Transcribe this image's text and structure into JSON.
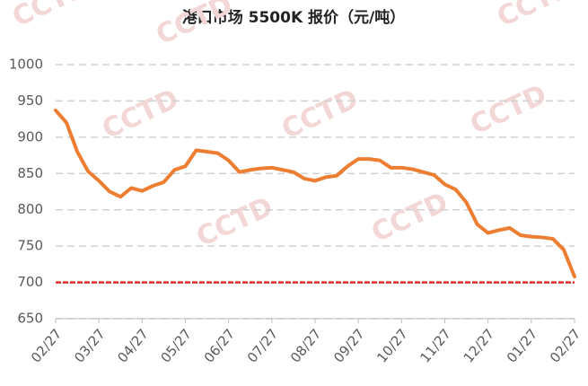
{
  "chart_data": {
    "type": "line",
    "title": "港口市场 5500K 报价（元/吨）",
    "watermark": "CCTD",
    "categories": [
      "02/27",
      null,
      null,
      null,
      "03/27",
      null,
      null,
      null,
      "04/27",
      null,
      null,
      null,
      "05/27",
      null,
      null,
      null,
      "06/27",
      null,
      null,
      null,
      "07/27",
      null,
      null,
      null,
      "08/27",
      null,
      null,
      null,
      "09/27",
      null,
      null,
      null,
      "10/27",
      null,
      null,
      null,
      "11/27",
      null,
      null,
      null,
      "12/27",
      null,
      null,
      null,
      "01/27",
      null,
      null,
      null,
      "02/27"
    ],
    "series": [
      {
        "color": "#ed7d31",
        "values": [
          937,
          920,
          880,
          853,
          840,
          825,
          818,
          830,
          826,
          833,
          838,
          855,
          860,
          882,
          880,
          878,
          868,
          852,
          855,
          857,
          858,
          855,
          852,
          843,
          840,
          845,
          847,
          860,
          870,
          870,
          868,
          858,
          858,
          856,
          852,
          848,
          835,
          828,
          810,
          780,
          768,
          772,
          775,
          765,
          763,
          762,
          760,
          745,
          708
        ]
      }
    ],
    "reference_line": {
      "value": 700,
      "color": "#e0302b"
    },
    "ylim": [
      650,
      1000
    ],
    "yticks": [
      650,
      700,
      750,
      800,
      850,
      900,
      950,
      1000
    ],
    "grid": true
  }
}
